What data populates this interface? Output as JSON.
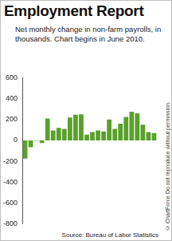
{
  "chart_data": {
    "type": "bar",
    "title": "Employment Report",
    "subtitle": "Net monthly change in non-farm payrolls, in thousands. Chart begins in June 2010.",
    "source": "Source: Bureau of Labor Statistics",
    "annotations": [
      "© ChartForce  Do not reproduce without permission."
    ],
    "categories": [
      null,
      null,
      null,
      null,
      null,
      null,
      null,
      null,
      null,
      null,
      null,
      null,
      null,
      null,
      null,
      null,
      null,
      null,
      null,
      null,
      null,
      null,
      null,
      null
    ],
    "values": [
      -175,
      -65,
      -5,
      -25,
      210,
      95,
      120,
      110,
      220,
      245,
      250,
      55,
      80,
      95,
      85,
      200,
      110,
      160,
      225,
      275,
      260,
      150,
      80,
      70
    ],
    "color": "#5aa02c",
    "ylim": [
      -800,
      600
    ],
    "yticks": [
      -800,
      -600,
      -400,
      -200,
      0,
      200,
      400,
      600
    ],
    "grid": false,
    "tick_labels": "y"
  }
}
